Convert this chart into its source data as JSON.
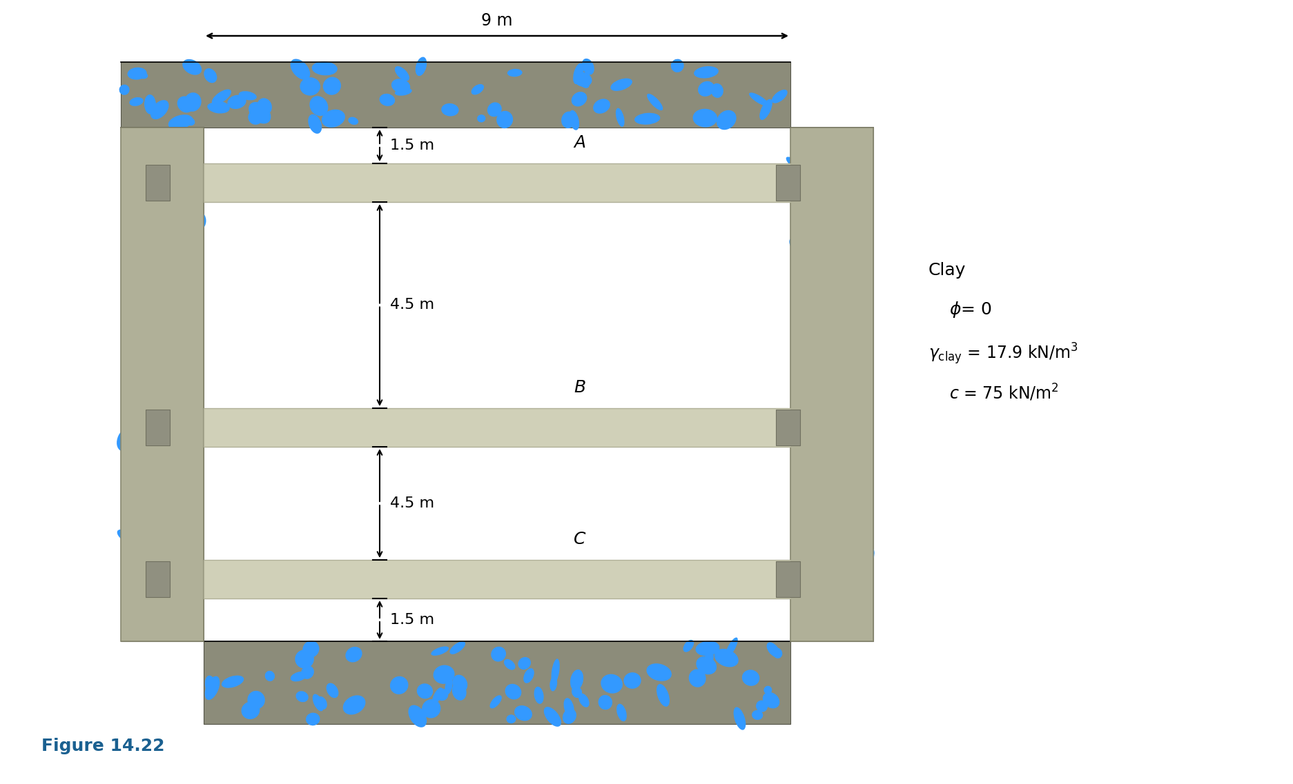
{
  "fig_width": 18.74,
  "fig_height": 11.37,
  "bg_color": "#ffffff",
  "soil_color": "#8c8c7a",
  "soil_blue_dot_color": "#3399ff",
  "sheet_pile_color": "#b0b098",
  "sheet_pile_edge": "#888870",
  "strut_color": "#d0d0b8",
  "strut_edge": "#b0b098",
  "connector_color": "#909080",
  "connector_edge": "#707060",
  "width_label": "9 m",
  "dim1_label": "1.5 m",
  "dim2_label": "4.5 m",
  "dim3_label": "4.5 m",
  "dim4_label": "1.5 m",
  "strut_labels": [
    "A",
    "B",
    "C"
  ],
  "figure_label": "Figure 14.22",
  "figure_label_color": "#1a6090"
}
